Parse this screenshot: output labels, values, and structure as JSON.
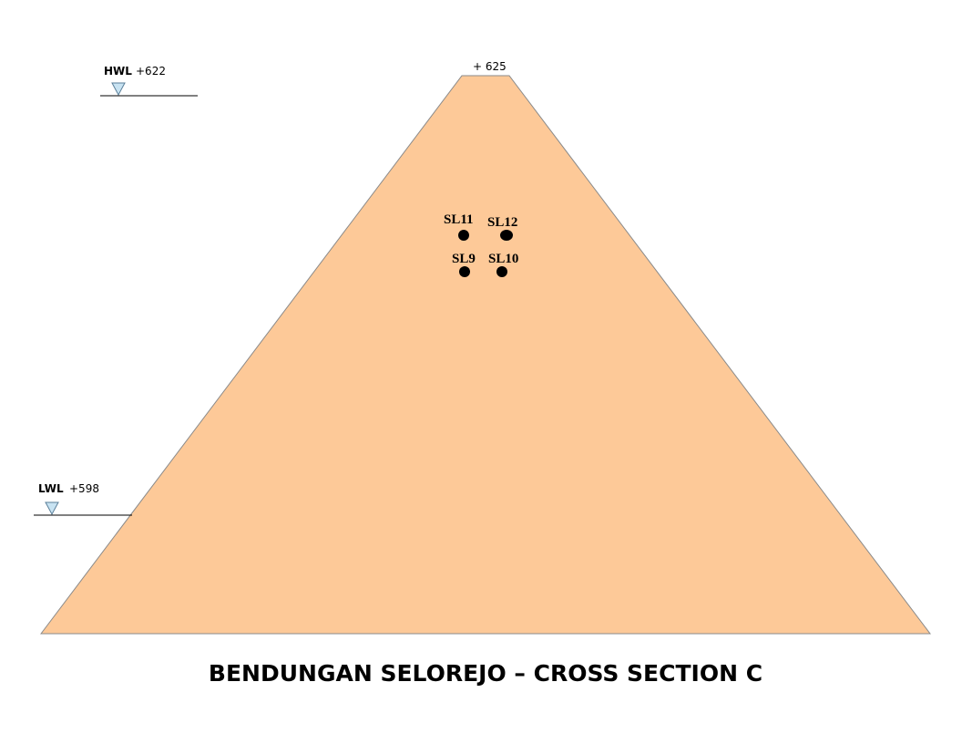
{
  "crest": {
    "label": "+ 625"
  },
  "hwl": {
    "tag": "HWL",
    "value": "+622"
  },
  "lwl": {
    "tag": "LWL",
    "value": "+598"
  },
  "sensors": [
    {
      "id": "SL11",
      "label": "SL11"
    },
    {
      "id": "SL12",
      "label": "SL12"
    },
    {
      "id": "SL9",
      "label": "SL9"
    },
    {
      "id": "SL10",
      "label": "SL10"
    }
  ],
  "title": "BENDUNGAN SELOREJO – CROSS SECTION C",
  "colors": {
    "dam_fill": "#fdc998",
    "dam_stroke": "#8a8a8a",
    "water_marker_fill": "#c8e3f2",
    "water_marker_stroke": "#5a7f99"
  }
}
